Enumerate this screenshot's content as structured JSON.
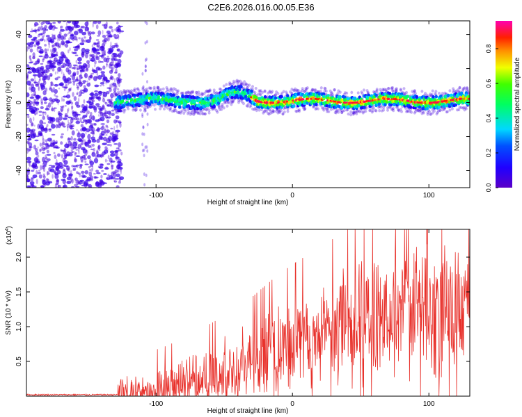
{
  "title": "C2E6.2026.016.00.05.E36",
  "chart_data": [
    {
      "type": "heatmap",
      "xlabel": "Height of straight line (km)",
      "ylabel": "Frequency (Hz)",
      "xlim": [
        -195,
        130
      ],
      "ylim": [
        -50,
        48
      ],
      "xticks": [
        -100,
        0,
        100
      ],
      "yticks": [
        -40,
        -20,
        0,
        20,
        40
      ],
      "colorbar": {
        "label": "Normalized spectral amplitude",
        "range": [
          0.0,
          0.96
        ],
        "ticks": [
          "0.0",
          "0.2",
          "0.4",
          "0.6",
          "0.8"
        ],
        "colormap": "rainbow (purple-blue-cyan-green-yellow-orange-red-magenta)"
      },
      "features": [
        {
          "name": "noise region",
          "x_range": [
            -195,
            -125
          ],
          "freq_range": [
            -50,
            48
          ],
          "amplitude": "low, scattered"
        },
        {
          "name": "signal band",
          "x_range": [
            -130,
            130
          ],
          "freq_center": 1,
          "freq_width": 8,
          "amplitude_peak": 0.9
        },
        {
          "name": "band bump",
          "x_range": [
            -50,
            -25
          ],
          "freq_center": 5
        }
      ]
    },
    {
      "type": "line",
      "xlabel": "Height of straight line (km)",
      "ylabel": "SNR (10 * v/v)",
      "scale_label": "(x10",
      "scale_exp": "4",
      "xlim": [
        -195,
        130
      ],
      "ylim": [
        0,
        2.4
      ],
      "xticks": [
        -100,
        0,
        100
      ],
      "yticks": [
        "0.5",
        "1.0",
        "1.5",
        "2.0"
      ],
      "color": "#e8302a",
      "trend": {
        "x": [
          -195,
          -130,
          -110,
          -90,
          -70,
          -50,
          -30,
          -10,
          10,
          30,
          50,
          70,
          90,
          110,
          130
        ],
        "y": [
          0.02,
          0.02,
          0.06,
          0.14,
          0.24,
          0.36,
          0.5,
          0.68,
          0.82,
          0.95,
          1.08,
          1.18,
          1.22,
          1.2,
          1.22
        ]
      }
    }
  ]
}
